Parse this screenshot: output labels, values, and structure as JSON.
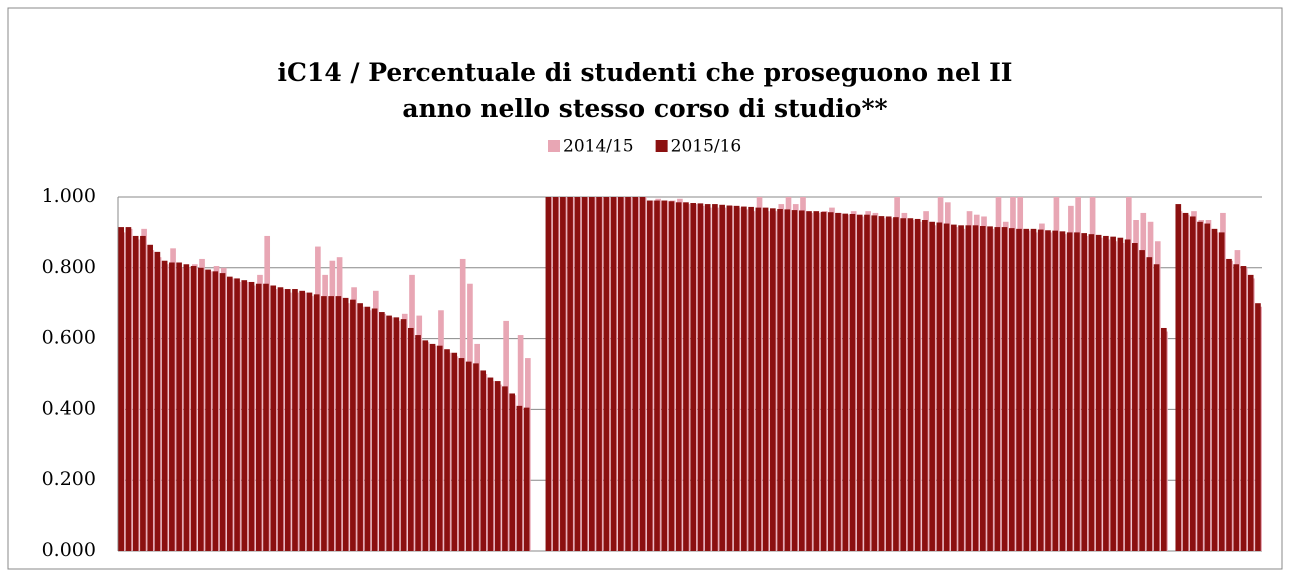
{
  "chart_data": {
    "type": "bar",
    "title": "iC14 / Percentuale di studenti che proseguono nel II anno nello stesso corso di studio**",
    "categories": [
      null,
      null,
      null,
      null,
      null,
      null,
      null,
      null,
      null,
      null,
      null,
      null,
      null,
      null,
      null,
      null,
      null,
      null,
      null,
      null,
      null,
      null,
      null,
      null,
      null,
      null,
      null,
      null,
      null,
      null,
      null,
      null,
      null,
      null,
      null,
      null,
      null,
      null,
      null,
      null,
      null,
      null,
      null,
      null,
      null,
      null,
      null,
      null,
      null,
      null,
      null,
      null,
      null,
      null,
      null,
      null,
      null,
      null,
      null,
      null,
      null,
      null,
      null,
      null,
      null,
      null,
      null,
      null,
      null,
      null,
      null,
      null,
      null,
      null,
      null,
      null,
      null,
      null,
      null,
      null,
      null,
      null,
      null,
      null,
      null,
      null,
      null,
      null,
      null,
      null,
      null,
      null,
      null,
      null,
      null,
      null,
      null,
      null,
      null,
      null,
      null,
      null,
      null,
      null,
      null,
      null,
      null,
      null,
      null,
      null,
      null,
      null,
      null,
      null,
      null,
      null,
      null,
      null,
      null,
      null,
      null,
      null,
      null,
      null,
      null,
      null,
      null,
      null,
      null,
      null,
      null,
      null,
      null,
      null,
      null,
      null,
      null,
      null,
      null,
      null,
      null,
      null,
      null,
      null,
      null,
      null,
      null,
      null,
      null,
      null,
      null,
      null,
      null,
      null,
      null,
      null,
      null,
      null
    ],
    "series": [
      {
        "name": "2014/15",
        "color": "#e8a6b4",
        "values": [
          0.9,
          0.91,
          0.88,
          0.91,
          0.85,
          0.83,
          0.81,
          0.855,
          0.8,
          0.8,
          0.81,
          0.825,
          0.79,
          0.805,
          0.8,
          0.77,
          0.76,
          0.76,
          0.75,
          0.78,
          0.89,
          0.74,
          0.74,
          0.73,
          0.73,
          0.73,
          0.72,
          0.86,
          0.78,
          0.82,
          0.83,
          0.7,
          0.745,
          0.69,
          0.68,
          0.735,
          0.67,
          0.66,
          0.65,
          0.67,
          0.78,
          0.665,
          0.59,
          0.58,
          0.68,
          0.56,
          0.55,
          0.825,
          0.755,
          0.585,
          0.5,
          0.48,
          0.47,
          0.65,
          0.44,
          0.61,
          0.545,
          null,
          null,
          1,
          1,
          1,
          1,
          1,
          1,
          1,
          1,
          1,
          1,
          1,
          1,
          1,
          1,
          0.99,
          0.995,
          0.99,
          0.99,
          0.995,
          0.98,
          0.98,
          0.975,
          0.97,
          0.97,
          0.97,
          0.975,
          0.97,
          0.965,
          0.96,
          1.0,
          0.96,
          0.96,
          0.98,
          1.0,
          0.98,
          1.0,
          0.955,
          0.955,
          0.96,
          0.97,
          0.955,
          0.95,
          0.96,
          0.945,
          0.96,
          0.955,
          0.94,
          0.94,
          1.0,
          0.955,
          0.935,
          0.93,
          0.96,
          0.92,
          1.0,
          0.985,
          0.915,
          0.91,
          0.96,
          0.95,
          0.945,
          0.91,
          1.0,
          0.93,
          1.0,
          1.0,
          0.905,
          0.9,
          0.925,
          0.9,
          1.0,
          0.895,
          0.975,
          1.0,
          0.89,
          1.0,
          0.885,
          0.88,
          0.875,
          0.87,
          1.0,
          0.935,
          0.955,
          0.93,
          0.875,
          0.62,
          null,
          0.96,
          0.95,
          0.96,
          0.935,
          0.935,
          0.9,
          0.955,
          0.82,
          0.85,
          0.8,
          0.77,
          0.69
        ]
      },
      {
        "name": "2015/16",
        "color": "#8b1010",
        "values": [
          0.915,
          0.915,
          0.89,
          0.89,
          0.865,
          0.845,
          0.82,
          0.815,
          0.815,
          0.81,
          0.805,
          0.8,
          0.795,
          0.79,
          0.785,
          0.775,
          0.77,
          0.765,
          0.76,
          0.755,
          0.755,
          0.75,
          0.745,
          0.74,
          0.74,
          0.735,
          0.73,
          0.725,
          0.72,
          0.72,
          0.72,
          0.715,
          0.71,
          0.7,
          0.69,
          0.685,
          0.675,
          0.665,
          0.66,
          0.655,
          0.63,
          0.61,
          0.595,
          0.585,
          0.58,
          0.57,
          0.56,
          0.545,
          0.535,
          0.53,
          0.51,
          0.49,
          0.48,
          0.465,
          0.445,
          0.41,
          0.405,
          null,
          null,
          1,
          1,
          1,
          1,
          1,
          1,
          1,
          1,
          1,
          1,
          1,
          1,
          1,
          1,
          0.99,
          0.99,
          0.99,
          0.988,
          0.985,
          0.985,
          0.983,
          0.982,
          0.98,
          0.98,
          0.978,
          0.976,
          0.975,
          0.973,
          0.972,
          0.97,
          0.97,
          0.968,
          0.966,
          0.965,
          0.963,
          0.962,
          0.96,
          0.96,
          0.958,
          0.957,
          0.955,
          0.953,
          0.952,
          0.95,
          0.95,
          0.948,
          0.946,
          0.945,
          0.943,
          0.94,
          0.94,
          0.938,
          0.935,
          0.93,
          0.928,
          0.925,
          0.922,
          0.92,
          0.92,
          0.92,
          0.918,
          0.917,
          0.915,
          0.915,
          0.912,
          0.91,
          0.91,
          0.91,
          0.908,
          0.906,
          0.905,
          0.903,
          0.9,
          0.9,
          0.898,
          0.895,
          0.893,
          0.89,
          0.888,
          0.885,
          0.88,
          0.87,
          0.85,
          0.83,
          0.81,
          0.63,
          null,
          0.98,
          0.955,
          0.945,
          0.93,
          0.925,
          0.91,
          0.9,
          0.825,
          0.81,
          0.805,
          0.78,
          0.7
        ]
      }
    ],
    "ylim": [
      0,
      1
    ],
    "yticks": [
      {
        "value": 0,
        "label": "0.000"
      },
      {
        "value": 0.2,
        "label": "0.200"
      },
      {
        "value": 0.4,
        "label": "0.400"
      },
      {
        "value": 0.6,
        "label": "0.600"
      },
      {
        "value": 0.8,
        "label": "0.800"
      },
      {
        "value": 1,
        "label": "1.000"
      }
    ],
    "grid": true
  }
}
